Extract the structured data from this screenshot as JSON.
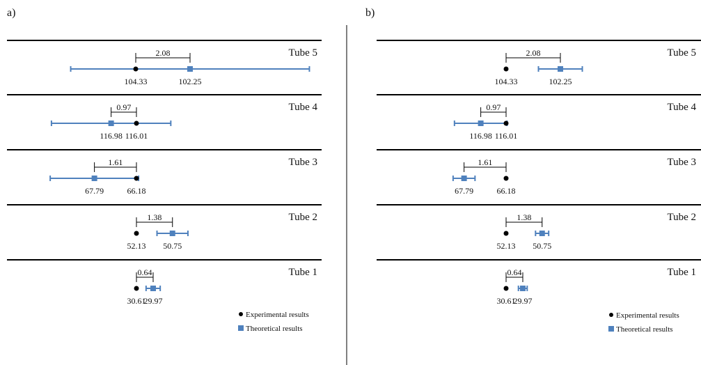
{
  "chart_data": [
    {
      "type": "scatter",
      "panel_label": "a)",
      "rows": [
        {
          "name": "Tube 5",
          "experimental": 104.33,
          "theoretical": 102.25,
          "theoretical_error": 27,
          "difference": "2.08",
          "exp_label": "104.33",
          "theo_label": "102.25"
        },
        {
          "name": "Tube 4",
          "experimental": 116.01,
          "theoretical": 116.98,
          "theoretical_error": 13.5,
          "difference": "0.97",
          "exp_label": "116.01",
          "theo_label": "116.98"
        },
        {
          "name": "Tube 3",
          "experimental": 66.18,
          "theoretical": 67.79,
          "theoretical_error": 10,
          "difference": "1.61",
          "exp_label": "66.18",
          "theo_label": "67.79"
        },
        {
          "name": "Tube 2",
          "experimental": 52.13,
          "theoretical": 50.75,
          "theoretical_error": 3.5,
          "difference": "1.38",
          "exp_label": "52.13",
          "theo_label": "50.75"
        },
        {
          "name": "Tube 1",
          "experimental": 30.61,
          "theoretical": 29.97,
          "theoretical_error": 1.6,
          "difference": "0.64",
          "exp_label": "30.61",
          "theo_label": "29.97"
        }
      ],
      "legend": {
        "placement": "bottom-right",
        "items": [
          "Experimental results",
          "Theoretical results"
        ]
      }
    },
    {
      "type": "scatter",
      "panel_label": "b)",
      "rows": [
        {
          "name": "Tube 5",
          "experimental": 104.33,
          "theoretical": 102.25,
          "theoretical_error": 5,
          "difference": "2.08",
          "exp_label": "104.33",
          "theo_label": "102.25"
        },
        {
          "name": "Tube 4",
          "experimental": 116.01,
          "theoretical": 116.98,
          "theoretical_error": 6,
          "difference": "0.97",
          "exp_label": "116.01",
          "theo_label": "116.98"
        },
        {
          "name": "Tube 3",
          "experimental": 66.18,
          "theoretical": 67.79,
          "theoretical_error": 2.5,
          "difference": "1.61",
          "exp_label": "66.18",
          "theo_label": "67.79"
        },
        {
          "name": "Tube 2",
          "experimental": 52.13,
          "theoretical": 50.75,
          "theoretical_error": 1.5,
          "difference": "1.38",
          "exp_label": "52.13",
          "theo_label": "50.75"
        },
        {
          "name": "Tube 1",
          "experimental": 30.61,
          "theoretical": 29.97,
          "theoretical_error": 1,
          "difference": "0.64",
          "exp_label": "30.61",
          "theo_label": "29.97"
        }
      ],
      "legend": {
        "placement": "bottom-right",
        "items": [
          "Experimental results",
          "Theoretical results"
        ]
      }
    }
  ],
  "colors": {
    "experimental": "#000000",
    "theoretical": "#4f81bd",
    "rule": "#000000",
    "divider": "#000000"
  }
}
